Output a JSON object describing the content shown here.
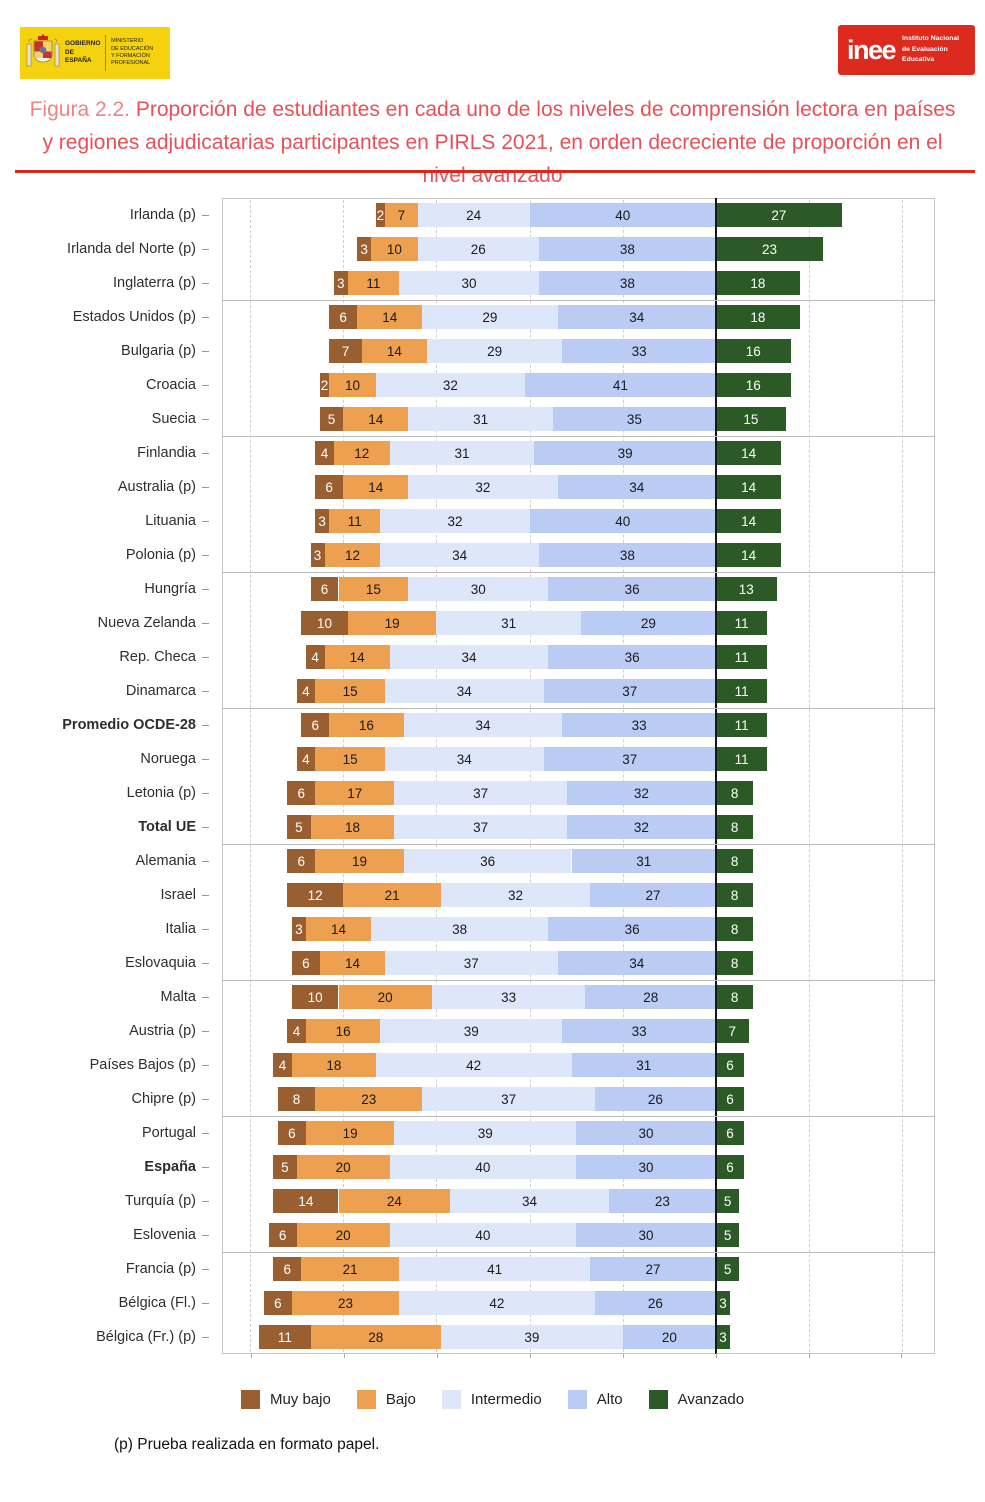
{
  "header": {
    "gov_logo": {
      "bg": "#F5D20F",
      "line1": "GOBIERNO",
      "line2": "DE ESPAÑA",
      "ministry_lines": [
        "MINISTERIO",
        "DE EDUCACIÓN",
        "Y FORMACIÓN PROFESIONAL"
      ]
    },
    "inee_logo": {
      "bg": "#DC2B1E",
      "brand": "inee",
      "name_lines": [
        "Instituto Nacional",
        "de Evaluación",
        "Educativa"
      ]
    }
  },
  "title": {
    "label": "Figura 2.2.",
    "text": "Proporción de estudiantes en cada uno de los niveles de comprensión lectora en países y regiones adjudicatarias participantes en PIRLS 2021, en orden decreciente de proporción en el nivel avanzado"
  },
  "chart_data": {
    "type": "bar",
    "orientation": "horizontal",
    "stacked": true,
    "anchor_note": "bars aligned so the Alto/Avanzado boundary sits on the vertical black line (x = 0)",
    "x_range": [
      -106,
      47
    ],
    "gridlines": [
      -100,
      -80,
      -60,
      -40,
      -20,
      0,
      20,
      40
    ],
    "grid": "dashed vertical",
    "series_names": [
      "Muy bajo",
      "Bajo",
      "Intermedio",
      "Alto",
      "Avanzado"
    ],
    "colors": {
      "muy_bajo": "#9A5F30",
      "bajo": "#EDA04F",
      "intermedio": "#DEE7FA",
      "alto": "#BACBF4",
      "avanzado": "#2B5A27",
      "value_text_dark": "#1a1a1a",
      "value_text_light": "#ffffff"
    },
    "group_breaks_after": [
      3,
      7,
      11,
      15,
      19,
      23,
      27,
      31
    ],
    "rows": [
      {
        "label": "Irlanda (p)",
        "bold": false,
        "values": [
          2,
          7,
          24,
          40,
          27
        ]
      },
      {
        "label": "Irlanda del Norte (p)",
        "bold": false,
        "values": [
          3,
          10,
          26,
          38,
          23
        ]
      },
      {
        "label": "Inglaterra (p)",
        "bold": false,
        "values": [
          3,
          11,
          30,
          38,
          18
        ]
      },
      {
        "label": "Estados Unidos (p)",
        "bold": false,
        "values": [
          6,
          14,
          29,
          34,
          18
        ]
      },
      {
        "label": "Bulgaria (p)",
        "bold": false,
        "values": [
          7,
          14,
          29,
          33,
          16
        ]
      },
      {
        "label": "Croacia",
        "bold": false,
        "values": [
          2,
          10,
          32,
          41,
          16
        ]
      },
      {
        "label": "Suecia",
        "bold": false,
        "values": [
          5,
          14,
          31,
          35,
          15
        ]
      },
      {
        "label": "Finlandia",
        "bold": false,
        "values": [
          4,
          12,
          31,
          39,
          14
        ]
      },
      {
        "label": "Australia (p)",
        "bold": false,
        "values": [
          6,
          14,
          32,
          34,
          14
        ]
      },
      {
        "label": "Lituania",
        "bold": false,
        "values": [
          3,
          11,
          32,
          40,
          14
        ]
      },
      {
        "label": "Polonia (p)",
        "bold": false,
        "values": [
          3,
          12,
          34,
          38,
          14
        ]
      },
      {
        "label": "Hungría",
        "bold": false,
        "values": [
          6,
          15,
          30,
          36,
          13
        ]
      },
      {
        "label": "Nueva Zelanda",
        "bold": false,
        "values": [
          10,
          19,
          31,
          29,
          11
        ]
      },
      {
        "label": "Rep. Checa",
        "bold": false,
        "values": [
          4,
          14,
          34,
          36,
          11
        ]
      },
      {
        "label": "Dinamarca",
        "bold": false,
        "values": [
          4,
          15,
          34,
          37,
          11
        ]
      },
      {
        "label": "Promedio OCDE-28",
        "bold": true,
        "values": [
          6,
          16,
          34,
          33,
          11
        ]
      },
      {
        "label": "Noruega",
        "bold": false,
        "values": [
          4,
          15,
          34,
          37,
          11
        ]
      },
      {
        "label": "Letonia (p)",
        "bold": false,
        "values": [
          6,
          17,
          37,
          32,
          8
        ]
      },
      {
        "label": "Total UE",
        "bold": true,
        "values": [
          5,
          18,
          37,
          32,
          8
        ]
      },
      {
        "label": "Alemania",
        "bold": false,
        "values": [
          6,
          19,
          36,
          31,
          8
        ]
      },
      {
        "label": "Israel",
        "bold": false,
        "values": [
          12,
          21,
          32,
          27,
          8
        ]
      },
      {
        "label": "Italia",
        "bold": false,
        "values": [
          3,
          14,
          38,
          36,
          8
        ]
      },
      {
        "label": "Eslovaquia",
        "bold": false,
        "values": [
          6,
          14,
          37,
          34,
          8
        ]
      },
      {
        "label": "Malta",
        "bold": false,
        "values": [
          10,
          20,
          33,
          28,
          8
        ]
      },
      {
        "label": "Austria (p)",
        "bold": false,
        "values": [
          4,
          16,
          39,
          33,
          7
        ]
      },
      {
        "label": "Países Bajos (p)",
        "bold": false,
        "values": [
          4,
          18,
          42,
          31,
          6
        ]
      },
      {
        "label": "Chipre (p)",
        "bold": false,
        "values": [
          8,
          23,
          37,
          26,
          6
        ]
      },
      {
        "label": "Portugal",
        "bold": false,
        "values": [
          6,
          19,
          39,
          30,
          6
        ]
      },
      {
        "label": "España",
        "bold": true,
        "values": [
          5,
          20,
          40,
          30,
          6
        ]
      },
      {
        "label": "Turquía (p)",
        "bold": false,
        "values": [
          14,
          24,
          34,
          23,
          5
        ]
      },
      {
        "label": "Eslovenia",
        "bold": false,
        "values": [
          6,
          20,
          40,
          30,
          5
        ]
      },
      {
        "label": "Francia (p)",
        "bold": false,
        "values": [
          6,
          21,
          41,
          27,
          5
        ]
      },
      {
        "label": "Bélgica (Fl.)",
        "bold": false,
        "values": [
          6,
          23,
          42,
          26,
          3
        ]
      },
      {
        "label": "Bélgica (Fr.) (p)",
        "bold": false,
        "values": [
          11,
          28,
          39,
          20,
          3
        ]
      }
    ]
  },
  "legend": {
    "items": [
      {
        "label": "Muy bajo",
        "color": "#9A5F30"
      },
      {
        "label": "Bajo",
        "color": "#EDA04F"
      },
      {
        "label": "Intermedio",
        "color": "#DEE7FA"
      },
      {
        "label": "Alto",
        "color": "#BACBF4"
      },
      {
        "label": "Avanzado",
        "color": "#2B5A27"
      }
    ]
  },
  "footnote": "(p) Prueba realizada en formato papel."
}
